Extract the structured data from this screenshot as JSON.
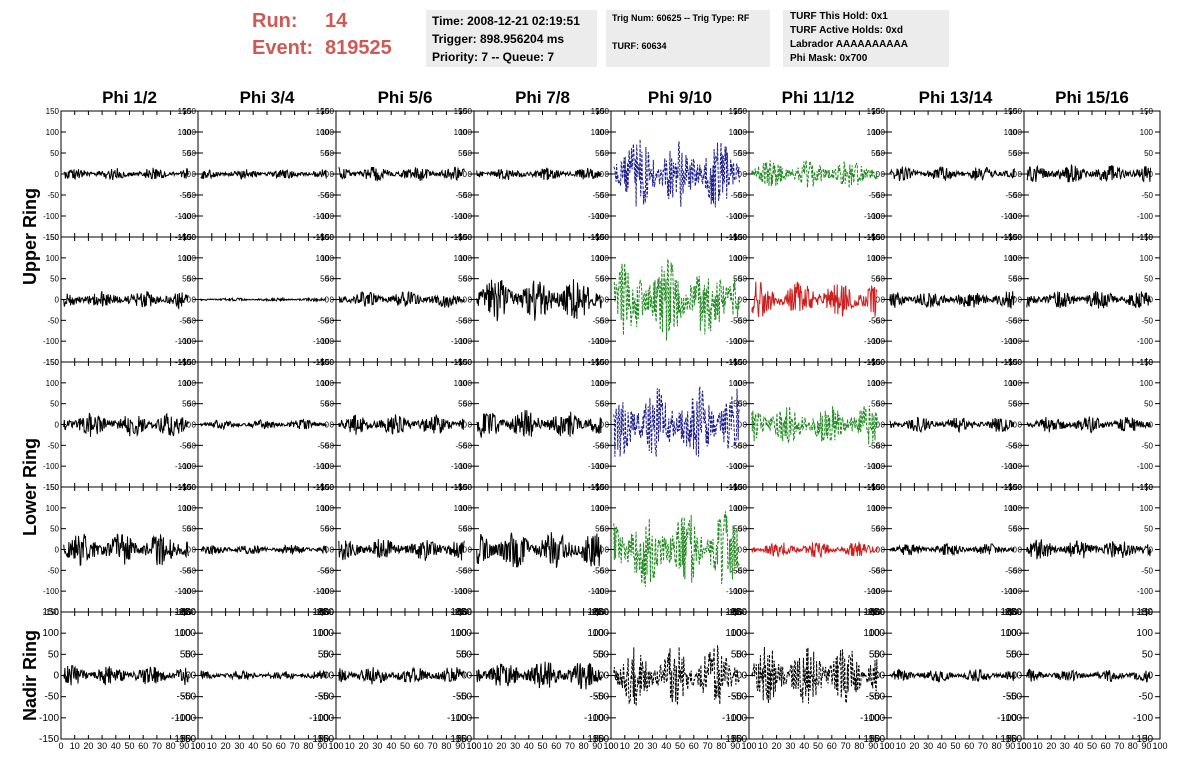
{
  "header": {
    "run_label": "Run:",
    "run_value": "14",
    "event_label": "Event:",
    "event_value": "819525"
  },
  "info": {
    "time": "Time: 2008-12-21 02:19:51",
    "trigger": "Trigger: 898.956204 ms",
    "priority": "Priority: 7 -- Queue: 7",
    "trig_num": "Trig Num: 60625 -- Trig Type: RF",
    "turf": "TURF: 60634",
    "turf_hold": "TURF This Hold: 0x1",
    "turf_active": "TURF Active Holds: 0xd",
    "labrador": "Labrador AAAAAAAAAA",
    "phi_mask": "Phi Mask: 0x700"
  },
  "chart_data": {
    "type": "line",
    "columns": [
      "Phi 1/2",
      "Phi 3/4",
      "Phi 5/6",
      "Phi 7/8",
      "Phi 9/10",
      "Phi 11/12",
      "Phi 13/14",
      "Phi 15/16"
    ],
    "ring_labels": [
      "Upper Ring",
      "Lower Ring",
      "Nadir Ring"
    ],
    "rows": 5,
    "xlim": [
      0,
      100
    ],
    "ylim": [
      -150,
      150
    ],
    "x_ticks": [
      "0",
      "10",
      "20",
      "30",
      "40",
      "50",
      "60",
      "70",
      "80",
      "90",
      "100"
    ],
    "y_ticks_main": [
      "150",
      "100",
      "50",
      "0",
      "-50",
      "-100",
      "-150"
    ],
    "y_ticks_nadir": [
      "150",
      "100",
      "50",
      "0",
      "-50",
      "-100",
      "-150"
    ],
    "colors": {
      "black": "#000000",
      "blue": "#1c1c8c",
      "green": "#1f8a1f",
      "red": "#cc2020"
    },
    "waveforms": [
      [
        {
          "amp": 15,
          "color": "black"
        },
        {
          "amp": 12,
          "color": "black"
        },
        {
          "amp": 18,
          "color": "black"
        },
        {
          "amp": 15,
          "color": "black"
        },
        {
          "amp": 90,
          "color": "blue",
          "dash": true
        },
        {
          "amp": 35,
          "color": "green",
          "dash": true
        },
        {
          "amp": 18,
          "color": "black"
        },
        {
          "amp": 22,
          "color": "black"
        }
      ],
      [
        {
          "amp": 22,
          "color": "black"
        },
        {
          "amp": 4,
          "color": "black"
        },
        {
          "amp": 20,
          "color": "black"
        },
        {
          "amp": 55,
          "color": "black"
        },
        {
          "amp": 100,
          "color": "green",
          "dash": true
        },
        {
          "amp": 45,
          "color": "red"
        },
        {
          "amp": 22,
          "color": "black"
        },
        {
          "amp": 22,
          "color": "black"
        }
      ],
      [
        {
          "amp": 30,
          "color": "black"
        },
        {
          "amp": 12,
          "color": "black"
        },
        {
          "amp": 25,
          "color": "black"
        },
        {
          "amp": 35,
          "color": "black"
        },
        {
          "amp": 95,
          "color": "blue",
          "dash": true
        },
        {
          "amp": 50,
          "color": "green",
          "dash": true
        },
        {
          "amp": 18,
          "color": "black"
        },
        {
          "amp": 20,
          "color": "black"
        }
      ],
      [
        {
          "amp": 40,
          "color": "black"
        },
        {
          "amp": 12,
          "color": "black"
        },
        {
          "amp": 28,
          "color": "black"
        },
        {
          "amp": 45,
          "color": "black"
        },
        {
          "amp": 95,
          "color": "green",
          "dash": true
        },
        {
          "amp": 20,
          "color": "red"
        },
        {
          "amp": 15,
          "color": "black"
        },
        {
          "amp": 25,
          "color": "black"
        }
      ],
      [
        {
          "amp": 25,
          "color": "black"
        },
        {
          "amp": 12,
          "color": "black"
        },
        {
          "amp": 22,
          "color": "black"
        },
        {
          "amp": 35,
          "color": "black"
        },
        {
          "amp": 75,
          "color": "black",
          "dash": true
        },
        {
          "amp": 70,
          "color": "black",
          "dash": true
        },
        {
          "amp": 15,
          "color": "black"
        },
        {
          "amp": 15,
          "color": "black"
        }
      ]
    ]
  }
}
